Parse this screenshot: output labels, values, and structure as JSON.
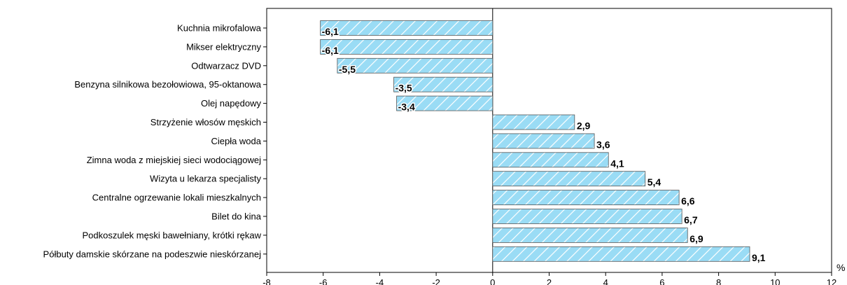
{
  "chart_data": {
    "type": "bar",
    "orientation": "horizontal",
    "categories": [
      "Kuchnia mikrofalowa",
      "Mikser elektryczny",
      "Odtwarzacz DVD",
      "Benzyna silnikowa bezołowiowa, 95-oktanowa",
      "Olej napędowy",
      "Strzyżenie włosów męskich",
      "Ciepła woda",
      "Zimna woda z miejskiej sieci wodociągowej",
      "Wizyta u lekarza specjalisty",
      "Centralne ogrzewanie lokali mieszkalnych",
      "Bilet do kina",
      "Podkoszulek męski bawełniany, krótki rękaw",
      "Półbuty damskie skórzane na podeszwie nieskórzanej"
    ],
    "values": [
      -6.1,
      -6.1,
      -5.5,
      -3.5,
      -3.4,
      2.9,
      3.6,
      4.1,
      5.4,
      6.6,
      6.7,
      6.9,
      9.1
    ],
    "value_labels": [
      "-6,1",
      "-6,1",
      "-5,5",
      "-3,5",
      "-3,4",
      "2,9",
      "3,6",
      "4,1",
      "5,4",
      "6,6",
      "6,7",
      "6,9",
      "9,1"
    ],
    "xlim": [
      -8,
      12
    ],
    "xticks": [
      -8,
      -6,
      -4,
      -2,
      0,
      2,
      4,
      6,
      8,
      10,
      12
    ],
    "xunit": "%",
    "bar_color": "#9adcf5",
    "hatch_color": "#ffffff",
    "grid": false,
    "title": "",
    "xlabel": "",
    "ylabel": ""
  }
}
